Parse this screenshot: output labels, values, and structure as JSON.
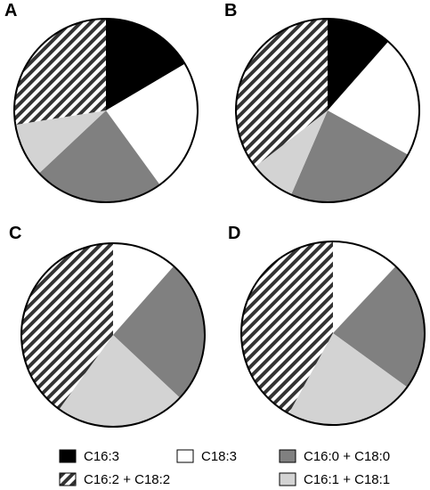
{
  "categories": [
    "C16:3",
    "C18:3",
    "C16:0 + C18:0",
    "C16:1 + C18:1",
    "C16:2 + C18:2"
  ],
  "colors": {
    "C16:3": "#000000",
    "C18:3": "#ffffff",
    "C16:0 + C18:0": "#808080",
    "C16:1 + C18:1": "#d3d3d3",
    "C16:2 + C18:2": "hatch"
  },
  "legend": {
    "items": [
      {
        "key": "C16:3",
        "label": "C16:3"
      },
      {
        "key": "C18:3",
        "label": "C18:3"
      },
      {
        "key": "C16:0 + C18:0",
        "label": "C16:0 + C18:0"
      },
      {
        "key": "C16:2 + C18:2",
        "label": "C16:2 + C18:2"
      },
      {
        "key": "C16:1 + C18:1",
        "label": "C16:1 + C18:1"
      }
    ]
  },
  "chart_data": [
    {
      "type": "pie",
      "panel": "A",
      "labels": [
        "C16:3",
        "C18:3",
        "C16:0 + C18:0",
        "C16:1 + C18:1",
        "C16:2 + C18:2"
      ],
      "values": [
        16.5,
        23.5,
        23,
        9.5,
        27.5
      ]
    },
    {
      "type": "pie",
      "panel": "B",
      "labels": [
        "C16:3",
        "C18:3",
        "C16:0 + C18:0",
        "C16:1 + C18:1",
        "C16:2 + C18:2"
      ],
      "values": [
        11.5,
        21.5,
        23.5,
        8,
        35.5
      ]
    },
    {
      "type": "pie",
      "panel": "C",
      "labels": [
        "C16:3",
        "C18:3",
        "C16:0 + C18:0",
        "C16:1 + C18:1",
        "C16:2 + C18:2"
      ],
      "values": [
        0,
        11.5,
        25.5,
        23,
        40
      ]
    },
    {
      "type": "pie",
      "panel": "D",
      "labels": [
        "C16:3",
        "C18:3",
        "C16:0 + C18:0",
        "C16:1 + C18:1",
        "C16:2 + C18:2"
      ],
      "values": [
        0,
        12,
        23,
        23,
        42
      ]
    }
  ]
}
